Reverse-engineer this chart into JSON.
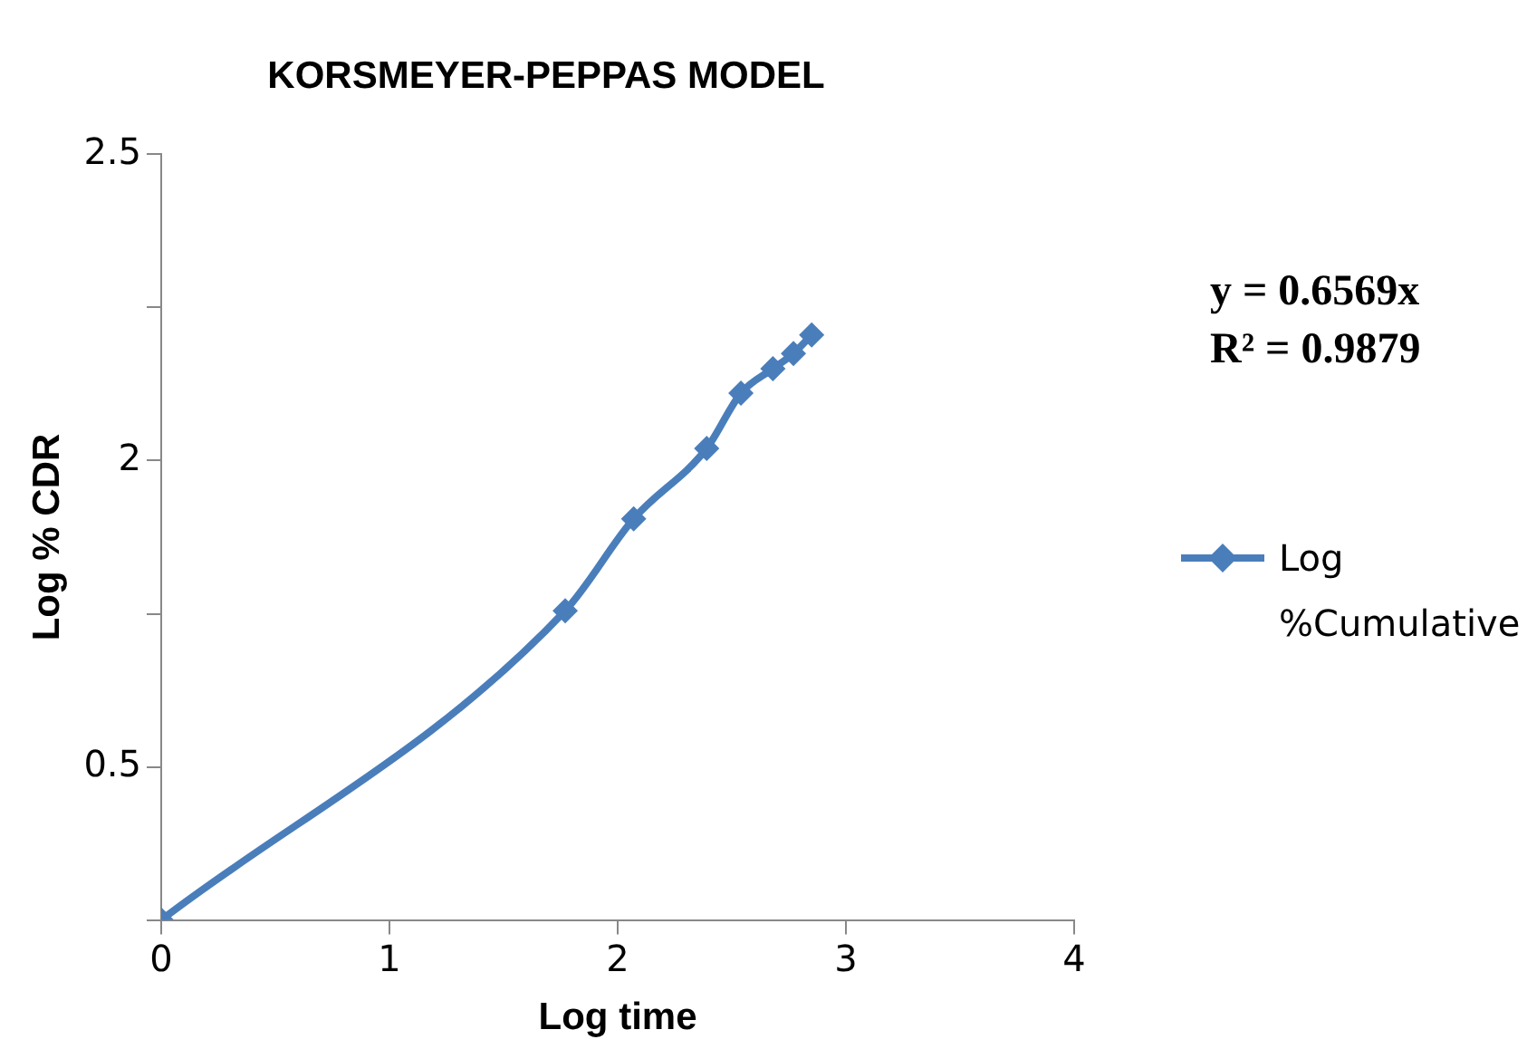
{
  "chart_data": {
    "type": "line",
    "title": "KORSMEYER-PEPPAS MODEL",
    "xlabel": "Log time",
    "ylabel": "Log % CDR",
    "x": [
      0,
      1.77,
      2.07,
      2.39,
      2.54,
      2.68,
      2.77,
      2.85
    ],
    "series": [
      {
        "name": "Log %Cumulative",
        "color": "#4a7ebb",
        "values": [
          0,
          1.01,
          1.31,
          1.54,
          1.72,
          1.8,
          1.85,
          1.91
        ]
      }
    ],
    "xlim": [
      0,
      4
    ],
    "xticks": [
      0,
      1,
      2,
      3,
      4
    ],
    "ylim": [
      0,
      2.5
    ],
    "yticks": [
      {
        "value": 0,
        "label": null
      },
      {
        "value": 0.5,
        "label": "0.5"
      },
      {
        "value": 1,
        "label": null
      },
      {
        "value": 1.5,
        "label": "2"
      },
      {
        "value": 2,
        "label": null
      },
      {
        "value": 2.5,
        "label": "2.5"
      }
    ],
    "annotations": [
      "y = 0.6569x",
      "R² = 0.9879"
    ],
    "marker": "diamond",
    "legend": "right",
    "grid": false
  }
}
